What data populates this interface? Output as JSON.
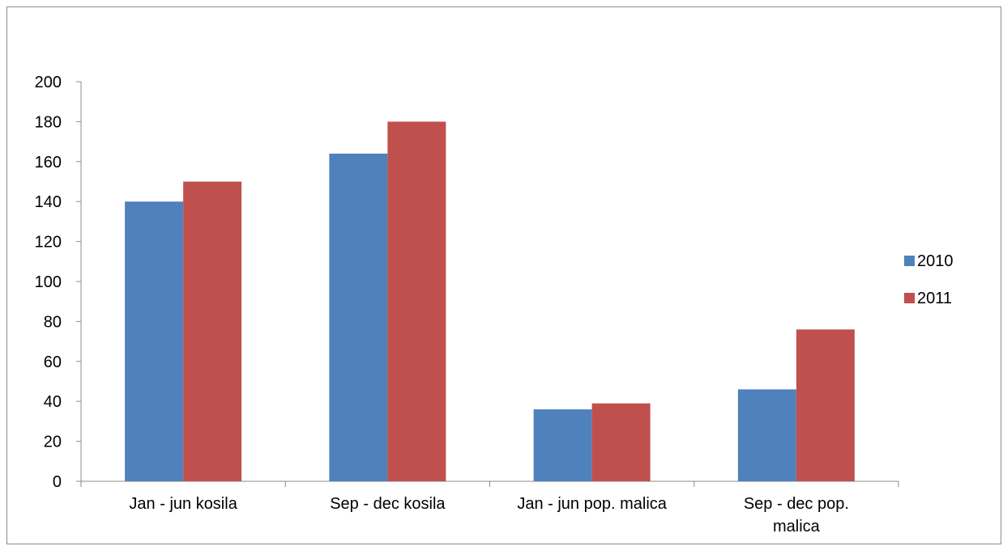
{
  "chart_data": {
    "type": "bar",
    "categories": [
      [
        "Jan - jun kosila"
      ],
      [
        "Sep - dec kosila"
      ],
      [
        "Jan - jun pop. malica"
      ],
      [
        "Sep - dec pop.",
        "malica"
      ]
    ],
    "series": [
      {
        "name": "2010",
        "values": [
          140,
          164,
          36,
          46
        ],
        "color": "#4f81bd"
      },
      {
        "name": "2011",
        "values": [
          150,
          180,
          39,
          76
        ],
        "color": "#c0504d"
      }
    ],
    "ylim": [
      0,
      200
    ],
    "yticks": [
      0,
      20,
      40,
      60,
      80,
      100,
      120,
      140,
      160,
      180,
      200
    ],
    "grid": false,
    "legend": "right"
  }
}
